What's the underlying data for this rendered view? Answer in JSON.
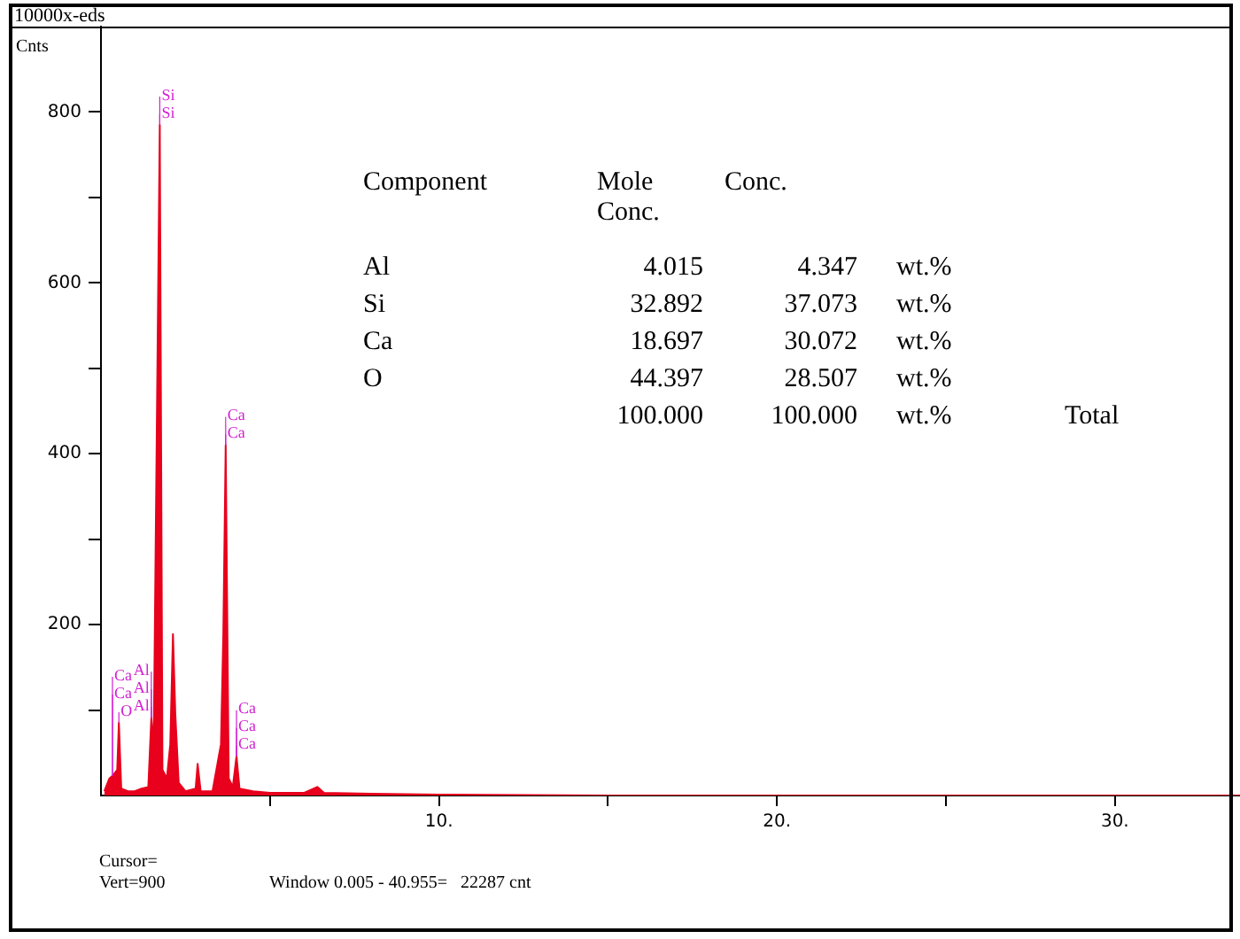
{
  "chart_data": {
    "type": "area",
    "title": "10000x-eds",
    "ylabel": "Cnts",
    "x": [
      0.1,
      0.25,
      0.34,
      0.48,
      0.53,
      0.6,
      0.8,
      1.0,
      1.2,
      1.4,
      1.49,
      1.56,
      1.74,
      1.82,
      1.95,
      2.05,
      2.13,
      2.2,
      2.3,
      2.5,
      2.8,
      2.86,
      2.95,
      3.3,
      3.55,
      3.62,
      3.69,
      3.78,
      3.9,
      4.01,
      4.1,
      4.5,
      5,
      6,
      6.4,
      6.6,
      8,
      10,
      15,
      20,
      33.7
    ],
    "series": [
      {
        "color": "#e8001c",
        "values": [
          5,
          20,
          23,
          30,
          85,
          8,
          5,
          5,
          8,
          10,
          91,
          60,
          785,
          30,
          20,
          60,
          189,
          95,
          15,
          5,
          8,
          37,
          5,
          5,
          60,
          190,
          410,
          20,
          10,
          46,
          8,
          5,
          3,
          3,
          10,
          3,
          2,
          1,
          0,
          0,
          0
        ]
      }
    ],
    "xlim": [
      0,
      33.7
    ],
    "ylim": [
      0,
      900
    ],
    "xticks": [
      {
        "value": 5,
        "label": null
      },
      {
        "value": 10,
        "label": "10."
      },
      {
        "value": 15,
        "label": null
      },
      {
        "value": 20,
        "label": "20."
      },
      {
        "value": 25,
        "label": null
      },
      {
        "value": 30,
        "label": "30."
      }
    ],
    "yticks": [
      {
        "value": 100,
        "label": null
      },
      200,
      {
        "value": 300,
        "label": null
      },
      400,
      {
        "value": 500,
        "label": null
      },
      600,
      {
        "value": 700,
        "label": null
      },
      800
    ],
    "grid": false,
    "legend": false,
    "marker": "none",
    "line_style": "solid",
    "annotations": [
      {
        "text": "Si",
        "x": 1.74,
        "y": 785
      },
      {
        "text": "Si",
        "x": 1.74,
        "y": 785
      },
      {
        "text": "Ca",
        "x": 3.69,
        "y": 410
      },
      {
        "text": "Ca",
        "x": 3.69,
        "y": 410
      },
      {
        "text": "Ca",
        "x": 4.01,
        "y": 46
      },
      {
        "text": "Ca",
        "x": 4.01,
        "y": 46
      },
      {
        "text": "Ca",
        "x": 4.01,
        "y": 46
      },
      {
        "text": "O",
        "x": 0.53,
        "y": 85
      },
      {
        "text": "Ca",
        "x": 0.34,
        "y": 23
      },
      {
        "text": "Ca",
        "x": 0.34,
        "y": 23
      },
      {
        "text": "Al",
        "x": 1.49,
        "y": 91
      },
      {
        "text": "Al",
        "x": 1.49,
        "y": 91
      },
      {
        "text": "Al",
        "x": 1.49,
        "y": 91
      },
      "Component\tMole Conc.\tConc.\t\t",
      "Al\t4.015\t4.347\twt.%\t",
      "Si\t32.892\t37.073\twt.%\t",
      "Ca\t18.697\t30.072\twt.%\t",
      "O\t44.397\t28.507\twt.%\t",
      "\t100.000\t100.000\twt.%\tTotal",
      "Cursor=",
      "Vert=900",
      "Window 0.005 - 40.955=   22287 cnt"
    ]
  }
}
